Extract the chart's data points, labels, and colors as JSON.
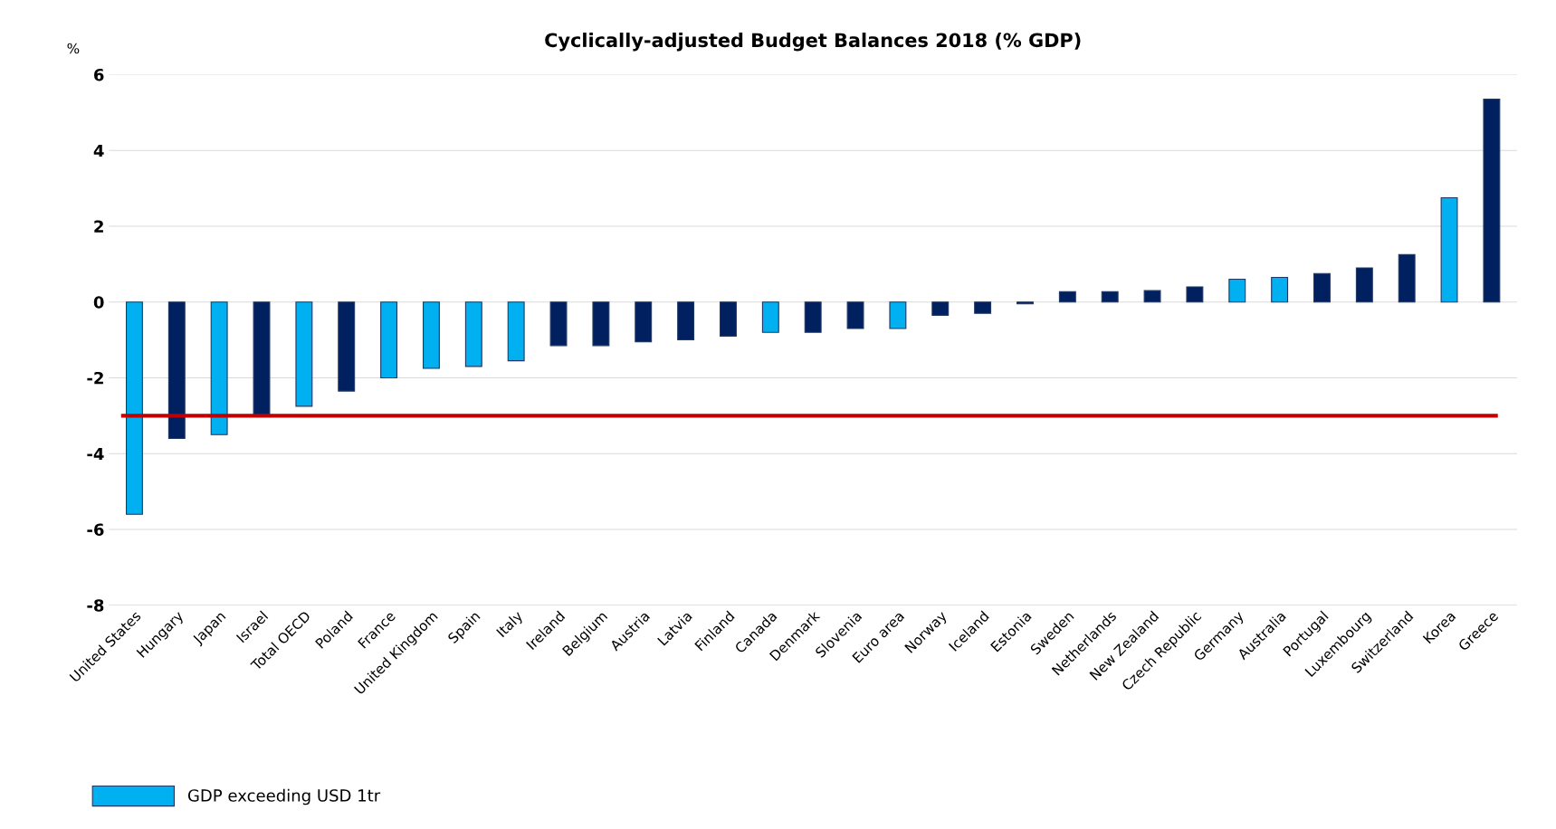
{
  "chart_data": {
    "type": "bar",
    "title": "Cyclically-adjusted Budget Balances 2018 (% GDP)",
    "ylabel": "%",
    "categories": [
      "United States",
      "Hungary",
      "Japan",
      "Israel",
      "Total OECD",
      "Poland",
      "France",
      "United Kingdom",
      "Spain",
      "Italy",
      "Ireland",
      "Belgium",
      "Austria",
      "Latvia",
      "Finland",
      "Canada",
      "Denmark",
      "Slovenia",
      "Euro area",
      "Norway",
      "Iceland",
      "Estonia",
      "Sweden",
      "Netherlands",
      "New Zealand",
      "Czech Republic",
      "Germany",
      "Australia",
      "Portugal",
      "Luxembourg",
      "Switzerland",
      "Korea",
      "Greece"
    ],
    "series": [
      {
        "name": "GDP exceeding USD 1tr",
        "color": "#00b0f0",
        "values": [
          -5.6,
          null,
          -3.5,
          null,
          -2.75,
          null,
          -2.0,
          -1.75,
          -1.7,
          -1.55,
          null,
          null,
          null,
          null,
          null,
          -0.8,
          null,
          null,
          -0.7,
          null,
          null,
          null,
          null,
          null,
          null,
          null,
          0.6,
          0.65,
          null,
          null,
          null,
          2.75,
          null
        ]
      },
      {
        "color": "#002060",
        "values": [
          null,
          -3.6,
          null,
          -3.0,
          null,
          -2.35,
          null,
          null,
          null,
          null,
          -1.15,
          -1.15,
          -1.05,
          -1.0,
          -0.9,
          null,
          -0.8,
          -0.7,
          null,
          -0.35,
          -0.3,
          -0.05,
          0.27,
          0.27,
          0.3,
          0.4,
          null,
          null,
          0.75,
          0.9,
          1.25,
          null,
          5.35
        ]
      }
    ],
    "ylim": [
      -8,
      6
    ],
    "yticks": [
      -8,
      -6,
      -4,
      -2,
      0,
      2,
      4,
      6
    ],
    "grid": "y",
    "legend": "bottom left",
    "ref_lines": [
      {
        "axis": "y",
        "value": -3,
        "color": "#c00000",
        "line_style": "solid"
      }
    ]
  }
}
